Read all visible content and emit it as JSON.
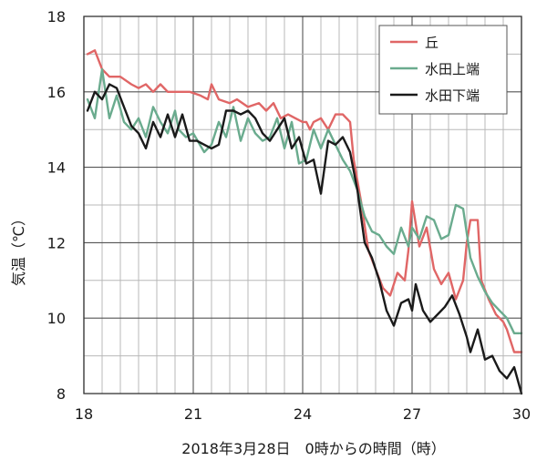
{
  "chart_data": {
    "type": "line",
    "xlabel": "2018年3月28日　0時からの時間（時）",
    "ylabel": "気温（℃）",
    "xlim": [
      18,
      30
    ],
    "ylim": [
      8,
      18
    ],
    "x_ticks": [
      18,
      21,
      24,
      27,
      30
    ],
    "y_ticks": [
      8,
      10,
      12,
      14,
      16,
      18
    ],
    "x_grid_step": 0.5,
    "y_grid_step": 1,
    "grid": true,
    "legend_position": "top-right",
    "series": [
      {
        "name": "丘",
        "color": "#e06666",
        "points": [
          [
            18.1,
            17.0
          ],
          [
            18.3,
            17.1
          ],
          [
            18.5,
            16.6
          ],
          [
            18.7,
            16.4
          ],
          [
            19.0,
            16.4
          ],
          [
            19.3,
            16.2
          ],
          [
            19.5,
            16.1
          ],
          [
            19.7,
            16.2
          ],
          [
            19.9,
            16.0
          ],
          [
            20.1,
            16.2
          ],
          [
            20.3,
            16.0
          ],
          [
            20.6,
            16.0
          ],
          [
            20.9,
            16.0
          ],
          [
            21.2,
            15.9
          ],
          [
            21.4,
            15.8
          ],
          [
            21.5,
            16.2
          ],
          [
            21.7,
            15.8
          ],
          [
            22.0,
            15.7
          ],
          [
            22.2,
            15.8
          ],
          [
            22.5,
            15.6
          ],
          [
            22.8,
            15.7
          ],
          [
            23.0,
            15.5
          ],
          [
            23.2,
            15.7
          ],
          [
            23.4,
            15.3
          ],
          [
            23.6,
            15.4
          ],
          [
            23.8,
            15.3
          ],
          [
            24.0,
            15.2
          ],
          [
            24.1,
            15.2
          ],
          [
            24.2,
            15.0
          ],
          [
            24.3,
            15.2
          ],
          [
            24.5,
            15.3
          ],
          [
            24.7,
            15.0
          ],
          [
            24.9,
            15.4
          ],
          [
            25.1,
            15.4
          ],
          [
            25.3,
            15.2
          ],
          [
            25.4,
            14.2
          ],
          [
            25.6,
            13.1
          ],
          [
            25.8,
            11.8
          ],
          [
            26.0,
            11.3
          ],
          [
            26.2,
            10.8
          ],
          [
            26.4,
            10.6
          ],
          [
            26.6,
            11.2
          ],
          [
            26.8,
            11.0
          ],
          [
            26.9,
            11.8
          ],
          [
            27.0,
            13.1
          ],
          [
            27.1,
            12.5
          ],
          [
            27.2,
            11.9
          ],
          [
            27.4,
            12.4
          ],
          [
            27.6,
            11.3
          ],
          [
            27.8,
            10.9
          ],
          [
            28.0,
            11.2
          ],
          [
            28.2,
            10.5
          ],
          [
            28.4,
            11.0
          ],
          [
            28.5,
            12.0
          ],
          [
            28.6,
            12.6
          ],
          [
            28.8,
            12.6
          ],
          [
            28.9,
            11.0
          ],
          [
            29.1,
            10.5
          ],
          [
            29.3,
            10.1
          ],
          [
            29.5,
            9.9
          ],
          [
            29.6,
            9.7
          ],
          [
            29.8,
            9.1
          ],
          [
            30.0,
            9.1
          ]
        ]
      },
      {
        "name": "水田上端",
        "color": "#6aab8e",
        "points": [
          [
            18.1,
            15.8
          ],
          [
            18.3,
            15.3
          ],
          [
            18.5,
            16.6
          ],
          [
            18.7,
            15.3
          ],
          [
            18.9,
            15.9
          ],
          [
            19.1,
            15.2
          ],
          [
            19.3,
            15.0
          ],
          [
            19.5,
            15.3
          ],
          [
            19.7,
            14.8
          ],
          [
            19.9,
            15.6
          ],
          [
            20.1,
            15.2
          ],
          [
            20.3,
            14.9
          ],
          [
            20.5,
            15.5
          ],
          [
            20.6,
            15.0
          ],
          [
            20.8,
            14.8
          ],
          [
            21.0,
            14.9
          ],
          [
            21.3,
            14.4
          ],
          [
            21.5,
            14.6
          ],
          [
            21.7,
            15.2
          ],
          [
            21.9,
            14.8
          ],
          [
            22.1,
            15.6
          ],
          [
            22.3,
            14.7
          ],
          [
            22.5,
            15.3
          ],
          [
            22.7,
            14.9
          ],
          [
            22.9,
            14.7
          ],
          [
            23.1,
            14.8
          ],
          [
            23.3,
            15.3
          ],
          [
            23.5,
            14.5
          ],
          [
            23.7,
            15.2
          ],
          [
            23.9,
            14.1
          ],
          [
            24.1,
            14.2
          ],
          [
            24.3,
            15.0
          ],
          [
            24.5,
            14.5
          ],
          [
            24.7,
            15.0
          ],
          [
            24.9,
            14.6
          ],
          [
            25.1,
            14.2
          ],
          [
            25.3,
            13.9
          ],
          [
            25.5,
            13.4
          ],
          [
            25.7,
            12.7
          ],
          [
            25.9,
            12.3
          ],
          [
            26.1,
            12.2
          ],
          [
            26.3,
            11.9
          ],
          [
            26.5,
            11.7
          ],
          [
            26.7,
            12.4
          ],
          [
            26.9,
            11.9
          ],
          [
            27.0,
            12.4
          ],
          [
            27.2,
            12.1
          ],
          [
            27.4,
            12.7
          ],
          [
            27.6,
            12.6
          ],
          [
            27.8,
            12.1
          ],
          [
            28.0,
            12.2
          ],
          [
            28.2,
            13.0
          ],
          [
            28.4,
            12.9
          ],
          [
            28.6,
            11.6
          ],
          [
            28.8,
            11.1
          ],
          [
            29.0,
            10.7
          ],
          [
            29.2,
            10.4
          ],
          [
            29.4,
            10.2
          ],
          [
            29.6,
            10.0
          ],
          [
            29.8,
            9.6
          ],
          [
            30.0,
            9.6
          ]
        ]
      },
      {
        "name": "水田下端",
        "color": "#1a1a1a",
        "points": [
          [
            18.1,
            15.5
          ],
          [
            18.3,
            16.0
          ],
          [
            18.5,
            15.8
          ],
          [
            18.7,
            16.2
          ],
          [
            18.9,
            16.1
          ],
          [
            19.1,
            15.6
          ],
          [
            19.3,
            15.1
          ],
          [
            19.5,
            14.9
          ],
          [
            19.7,
            14.5
          ],
          [
            19.9,
            15.2
          ],
          [
            20.1,
            14.8
          ],
          [
            20.3,
            15.4
          ],
          [
            20.5,
            14.8
          ],
          [
            20.7,
            15.4
          ],
          [
            20.9,
            14.7
          ],
          [
            21.1,
            14.7
          ],
          [
            21.3,
            14.6
          ],
          [
            21.5,
            14.5
          ],
          [
            21.7,
            14.6
          ],
          [
            21.9,
            15.5
          ],
          [
            22.1,
            15.5
          ],
          [
            22.3,
            15.4
          ],
          [
            22.5,
            15.5
          ],
          [
            22.7,
            15.3
          ],
          [
            22.9,
            14.9
          ],
          [
            23.1,
            14.7
          ],
          [
            23.3,
            15.0
          ],
          [
            23.5,
            15.3
          ],
          [
            23.7,
            14.5
          ],
          [
            23.9,
            14.8
          ],
          [
            24.1,
            14.1
          ],
          [
            24.3,
            14.2
          ],
          [
            24.5,
            13.3
          ],
          [
            24.7,
            14.7
          ],
          [
            24.9,
            14.6
          ],
          [
            25.1,
            14.8
          ],
          [
            25.3,
            14.4
          ],
          [
            25.5,
            13.4
          ],
          [
            25.7,
            12.0
          ],
          [
            25.9,
            11.6
          ],
          [
            26.1,
            11.0
          ],
          [
            26.3,
            10.2
          ],
          [
            26.5,
            9.8
          ],
          [
            26.7,
            10.4
          ],
          [
            26.9,
            10.5
          ],
          [
            27.0,
            10.2
          ],
          [
            27.1,
            10.9
          ],
          [
            27.3,
            10.2
          ],
          [
            27.5,
            9.9
          ],
          [
            27.7,
            10.1
          ],
          [
            27.9,
            10.3
          ],
          [
            28.1,
            10.6
          ],
          [
            28.3,
            10.1
          ],
          [
            28.5,
            9.5
          ],
          [
            28.6,
            9.1
          ],
          [
            28.8,
            9.7
          ],
          [
            29.0,
            8.9
          ],
          [
            29.2,
            9.0
          ],
          [
            29.4,
            8.6
          ],
          [
            29.6,
            8.4
          ],
          [
            29.8,
            8.7
          ],
          [
            30.0,
            8.0
          ]
        ]
      }
    ]
  }
}
